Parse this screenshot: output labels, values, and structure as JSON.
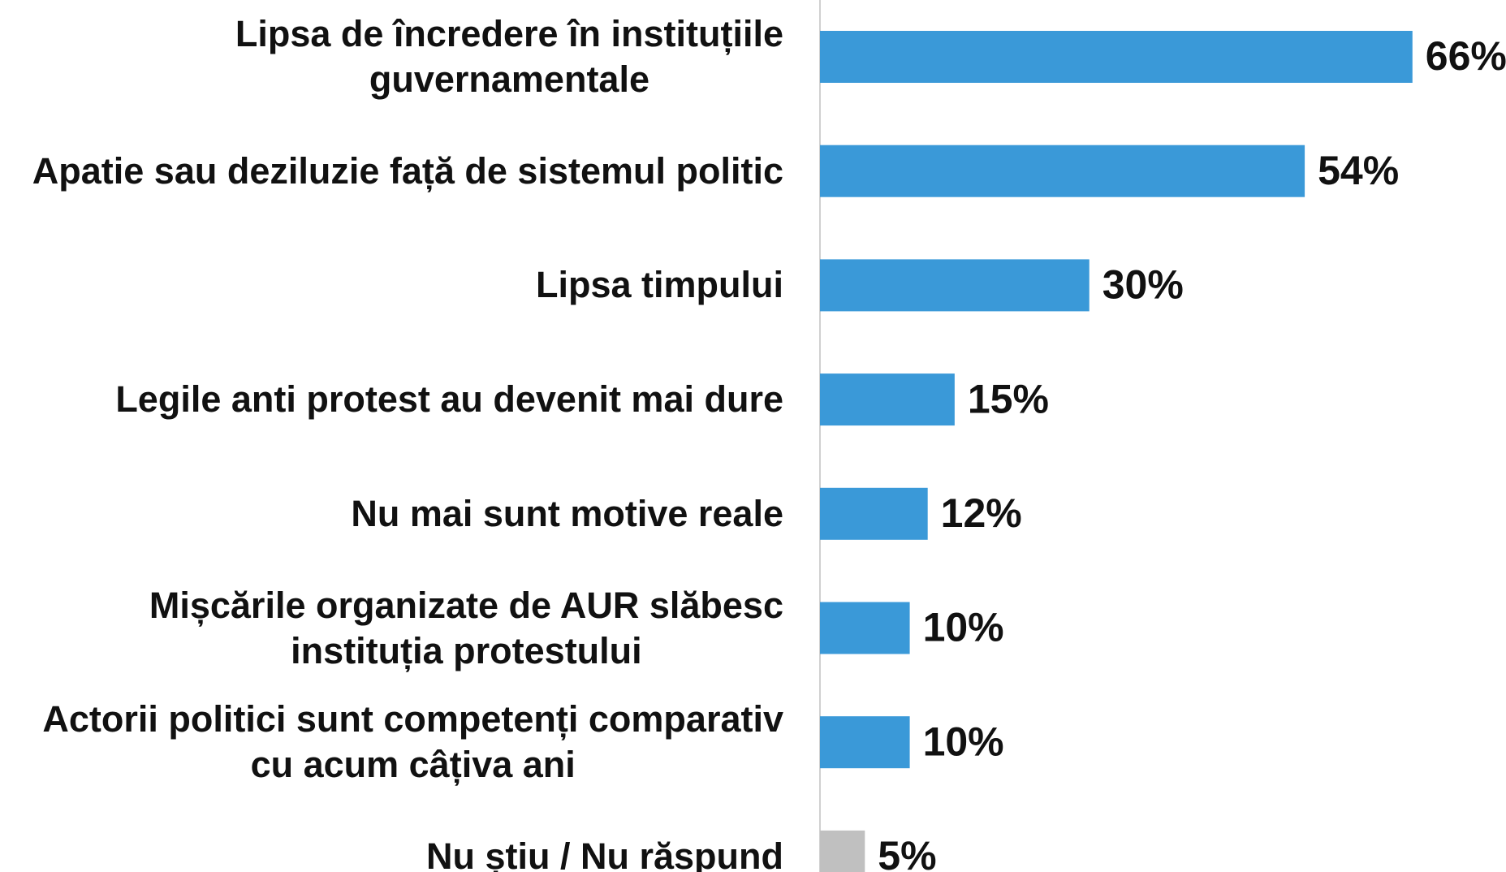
{
  "chart_data": {
    "type": "barh",
    "categories": [
      "Lipsa de încredere în instituțiile\nguvernamentale",
      "Apatie sau deziluzie față de sistemul politic",
      "Lipsa timpului ",
      "Legile anti protest au devenit mai dure",
      "Nu mai sunt motive reale",
      "Mișcările organizate de AUR slăbesc\ninstituția protestului",
      "Actorii politici sunt competenți comparativ\ncu acum câțiva ani",
      "Nu știu / Nu răspund"
    ],
    "values": [
      66,
      54,
      30,
      15,
      12,
      10,
      10,
      5
    ],
    "value_labels": [
      "66%",
      "54%",
      "30%",
      "15%",
      "12%",
      "10%",
      "10%",
      "5%"
    ],
    "colors": [
      "#3a99d8",
      "#3a99d8",
      "#3a99d8",
      "#3a99d8",
      "#3a99d8",
      "#3a99d8",
      "#3a99d8",
      "#c0c0c0"
    ],
    "xlim": [
      0,
      70
    ]
  }
}
